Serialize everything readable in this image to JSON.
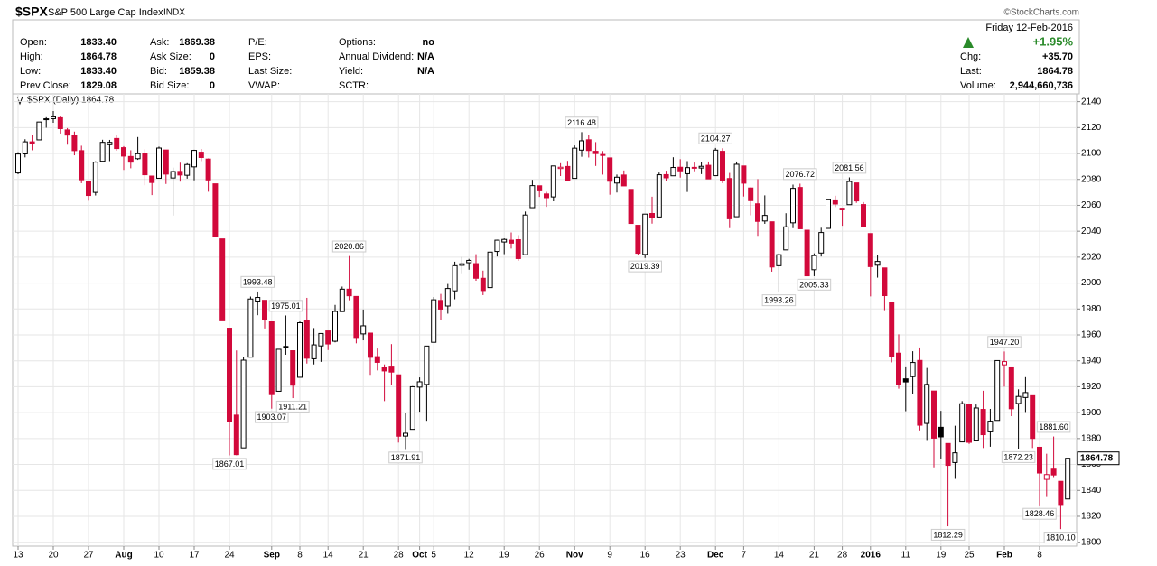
{
  "header": {
    "symbol": "$SPX",
    "name": "S&P 500 Large Cap Index",
    "exchange": "INDX",
    "credit": "©StockCharts.com",
    "date": "Friday  12-Feb-2016",
    "change_pct": "+1.95%",
    "columns": [
      [
        {
          "label": "Open:",
          "value": "1833.40"
        },
        {
          "label": "High:",
          "value": "1864.78"
        },
        {
          "label": "Low:",
          "value": "1833.40"
        },
        {
          "label": "Prev Close:",
          "value": "1829.08"
        }
      ],
      [
        {
          "label": "Ask:",
          "value": "1869.38"
        },
        {
          "label": "Ask Size:",
          "value": "0"
        },
        {
          "label": "Bid:",
          "value": "1859.38"
        },
        {
          "label": "Bid Size:",
          "value": "0"
        }
      ],
      [
        {
          "label": "P/E:"
        },
        {
          "label": "EPS:"
        },
        {
          "label": "Last Size:"
        },
        {
          "label": "VWAP:"
        }
      ],
      [
        {
          "label": "Options:",
          "value": "no"
        },
        {
          "label": "Annual Dividend:",
          "value": "N/A"
        },
        {
          "label": "Yield:",
          "value": "N/A"
        },
        {
          "label": "SCTR:"
        }
      ],
      [
        {
          "label": "Chg:",
          "value": "+35.70"
        },
        {
          "label": "Last:",
          "value": "1864.78"
        },
        {
          "label": "Volume:",
          "value": "2,944,660,736"
        }
      ]
    ]
  },
  "chart_data": {
    "type": "candlestick",
    "legend": "$SPX (Daily) 1864.78",
    "up_color": "#000000",
    "down_color": "#d2093b",
    "categories": [
      "13",
      null,
      null,
      null,
      null,
      "20",
      null,
      null,
      null,
      null,
      "27",
      null,
      null,
      null,
      null,
      "Aug",
      null,
      null,
      null,
      null,
      "10",
      null,
      null,
      null,
      null,
      "17",
      null,
      null,
      null,
      null,
      "24",
      null,
      null,
      null,
      null,
      null,
      "Sep",
      null,
      null,
      null,
      "8",
      null,
      null,
      null,
      "14",
      null,
      null,
      null,
      null,
      "21",
      null,
      null,
      null,
      null,
      "28",
      null,
      null,
      "Oct",
      null,
      "5",
      null,
      null,
      null,
      null,
      "12",
      null,
      null,
      null,
      null,
      "19",
      null,
      null,
      null,
      null,
      "26",
      null,
      null,
      null,
      null,
      "Nov",
      null,
      null,
      null,
      null,
      "9",
      null,
      null,
      null,
      null,
      "16",
      null,
      null,
      null,
      null,
      "23",
      null,
      null,
      null,
      null,
      "Dec",
      null,
      null,
      null,
      "7",
      null,
      null,
      null,
      null,
      "14",
      null,
      null,
      null,
      null,
      "21",
      null,
      null,
      null,
      "28",
      null,
      null,
      null,
      "2016",
      null,
      null,
      null,
      null,
      "11",
      null,
      null,
      null,
      null,
      "19",
      null,
      null,
      null,
      "25",
      null,
      null,
      null,
      null,
      "Feb",
      null,
      null,
      null,
      null,
      "8",
      null,
      null,
      null,
      null
    ],
    "open": [
      2085.0,
      2099.7,
      2109.0,
      2110.5,
      2126.8,
      2126.9,
      2127.6,
      2118.2,
      2114.2,
      2102.2,
      2078.2,
      2070.0,
      2094.0,
      2106.8,
      2111.6,
      2104.5,
      2097.7,
      2096.0,
      2100.0,
      2082.6,
      2080.9,
      2102.7,
      2081.1,
      2086.2,
      2083.2,
      2089.7,
      2101.0,
      2095.7,
      2076.6,
      2034.1,
      1965.2,
      1898.1,
      1872.8,
      1942.8,
      1986.1,
      1986.7,
      1970.1,
      1916.5,
      1950.8,
      1947.8,
      1927.3,
      1971.5,
      1941.6,
      1951.5,
      1963.1,
      1955.1,
      1978.0,
      1995.3,
      1989.7,
      1960.8,
      1961.4,
      1943.2,
      1934.8,
      1935.9,
      1929.2,
      1881.9,
      1887.1,
      1919.7,
      1921.8,
      1954.3,
      1986.6,
      1982.3,
      1994.0,
      2013.7,
      2015.7,
      2015.0,
      2003.7,
      1996.5,
      2024.4,
      2031.7,
      2033.1,
      2033.5,
      2021.9,
      2058.2,
      2075.1,
      2068.8,
      2066.5,
      2088.4,
      2090.0,
      2080.8,
      2102.6,
      2110.6,
      2101.7,
      2098.6,
      2096.6,
      2077.2,
      2083.4,
      2072.3,
      2044.6,
      2022.1,
      2053.7,
      2051.0,
      2083.7,
      2082.8,
      2089.4,
      2084.4,
      2089.3,
      2088.8,
      2090.9,
      2082.9,
      2101.7,
      2080.7,
      2051.2,
      2090.4,
      2073.4,
      2061.2,
      2047.9,
      2047.3,
      2013.4,
      2025.6,
      2046.5,
      2073.8,
      2040.8,
      2010.3,
      2023.2,
      2042.2,
      2063.5,
      2057.8,
      2060.5,
      2077.3,
      2060.6,
      2038.2,
      2013.8,
      2011.7,
      1985.3,
      1945.9,
      1926.1,
      1927.8,
      1940.3,
      1891.7,
      1916.7,
      1888.7,
      1876.2,
      1861.5,
      1877.4,
      1906.3,
      1878.8,
      1902.5,
      1885.2,
      1894.0,
      1936.9,
      1935.3,
      1907.1,
      1911.7,
      1913.1,
      1873.3,
      1848.5,
      1857.1,
      1847.0,
      1833.4
    ],
    "high": [
      2101.0,
      2111.0,
      2114.0,
      2124.4,
      2128.0,
      2132.8,
      2128.9,
      2119.6,
      2116.9,
      2106.0,
      2078.2,
      2094.0,
      2110.6,
      2110.5,
      2114.2,
      2105.7,
      2102.5,
      2112.7,
      2103.3,
      2082.6,
      2105.3,
      2102.7,
      2089.1,
      2092.9,
      2092.5,
      2102.9,
      2103.5,
      2096.2,
      2076.6,
      2034.1,
      1965.2,
      1948.0,
      1943.1,
      1989.6,
      1993.48,
      1986.7,
      1970.1,
      1948.9,
      1975.01,
      1947.8,
      1970.4,
      1988.6,
      1965.3,
      1961.1,
      1963.1,
      1983.2,
      1997.3,
      2020.86,
      1989.7,
      1979.6,
      1961.4,
      1949.5,
      1937.2,
      1952.9,
      1929.2,
      1899.5,
      1920.5,
      1927.2,
      1951.4,
      1989.2,
      1991.6,
      1999.3,
      2016.5,
      2020.1,
      2018.7,
      2022.3,
      2009.6,
      2024.2,
      2033.5,
      2034.5,
      2039.1,
      2037.0,
      2055.2,
      2079.7,
      2075.1,
      2070.4,
      2090.4,
      2092.5,
      2094.3,
      2106.2,
      2116.48,
      2114.6,
      2108.8,
      2101.9,
      2096.6,
      2083.7,
      2086.9,
      2072.3,
      2044.6,
      2053.2,
      2066.7,
      2085.3,
      2086.7,
      2097.1,
      2095.6,
      2094.1,
      2093.0,
      2093.3,
      2093.8,
      2104.27,
      2104.0,
      2085.0,
      2093.8,
      2090.4,
      2073.9,
      2080.3,
      2067.7,
      2047.3,
      2022.9,
      2053.9,
      2076.0,
      2076.72,
      2040.8,
      2022.9,
      2042.7,
      2064.7,
      2067.4,
      2057.8,
      2081.56,
      2077.3,
      2062.5,
      2038.2,
      2021.9,
      2011.7,
      1985.3,
      1960.4,
      1935.7,
      1947.4,
      1950.3,
      1934.5,
      1916.7,
      1901.4,
      1876.2,
      1889.9,
      1908.9,
      1906.3,
      1906.3,
      1916.9,
      1902.9,
      1940.2,
      1947.2,
      1935.3,
      1918.0,
      1927.4,
      1913.1,
      1873.3,
      1868.3,
      1881.6,
      1847.0,
      1864.78
    ],
    "low": [
      2084.0,
      2097.0,
      2102.5,
      2110.5,
      2119.9,
      2123.7,
      2115.4,
      2106.8,
      2098.6,
      2077.1,
      2063.5,
      2067.6,
      2094.0,
      2094.1,
      2102.1,
      2087.3,
      2088.6,
      2095.1,
      2075.5,
      2067.9,
      2080.9,
      2076.5,
      2052.1,
      2078.3,
      2080.6,
      2079.3,
      2094.1,
      2070.5,
      2035.7,
      1970.9,
      1867.01,
      1867.1,
      1872.8,
      1942.8,
      1975.2,
      1965.0,
      1903.07,
      1916.5,
      1944.7,
      1911.21,
      1927.3,
      1937.9,
      1937.2,
      1939.2,
      1948.3,
      1954.3,
      1977.9,
      1986.7,
      1953.5,
      1955.8,
      1929.2,
      1932.6,
      1908.9,
      1921.5,
      1876.9,
      1871.91,
      1887.1,
      1900.7,
      1893.7,
      1954.3,
      1971.2,
      1976.4,
      1987.5,
      2007.6,
      2010.3,
      2001.8,
      1990.7,
      1996.5,
      2020.5,
      2022.3,
      2026.6,
      2017.2,
      2021.9,
      2058.2,
      2066.5,
      2058.8,
      2063.1,
      2082.6,
      2079.3,
      2080.8,
      2097.5,
      2096.9,
      2090.4,
      2083.7,
      2068.2,
      2069.9,
      2074.9,
      2045.7,
      2022.0,
      2019.39,
      2045.9,
      2051.0,
      2078.8,
      2082.8,
      2081.4,
      2070.3,
      2086.3,
      2084.1,
      2080.4,
      2082.9,
      2077.1,
      2042.4,
      2051.2,
      2066.8,
      2052.3,
      2036.5,
      2045.7,
      2008.8,
      1993.26,
      2025.6,
      2042.4,
      2041.7,
      2005.6,
      2005.33,
      2020.5,
      2042.2,
      2058.7,
      2044.2,
      2060.5,
      2061.9,
      2043.6,
      1989.7,
      2004.2,
      1979.1,
      1938.8,
      1918.5,
      1901.1,
      1914.4,
      1886.3,
      1878.9,
      1857.8,
      1864.6,
      1812.29,
      1848.9,
      1877.4,
      1875.8,
      1878.8,
      1872.7,
      1873.7,
      1894.0,
      1920.0,
      1897.3,
      1872.23,
      1900.5,
      1872.7,
      1828.46,
      1834.9,
      1850.3,
      1810.1,
      1833.4
    ],
    "close": [
      2099.6,
      2109.0,
      2107.4,
      2124.3,
      2126.6,
      2128.3,
      2119.2,
      2114.2,
      2102.2,
      2079.7,
      2067.6,
      2093.3,
      2108.6,
      2108.6,
      2103.8,
      2098.0,
      2093.3,
      2099.8,
      2083.6,
      2077.6,
      2104.2,
      2084.1,
      2086.1,
      2083.4,
      2091.5,
      2102.4,
      2096.9,
      2079.6,
      2035.7,
      1970.9,
      1893.2,
      1867.6,
      1940.5,
      1987.7,
      1988.9,
      1972.2,
      1913.9,
      1948.9,
      1951.1,
      1921.2,
      1969.4,
      1942.0,
      1952.3,
      1961.1,
      1953.0,
      1978.1,
      1995.3,
      1990.2,
      1958.0,
      1967.0,
      1942.7,
      1938.8,
      1932.2,
      1931.3,
      1881.8,
      1884.1,
      1920.0,
      1923.8,
      1951.4,
      1987.1,
      1979.9,
      1995.8,
      2013.4,
      2014.9,
      2017.5,
      2003.7,
      1994.2,
      2023.9,
      2033.1,
      2033.7,
      2030.8,
      2018.9,
      2052.5,
      2075.2,
      2071.2,
      2065.9,
      2090.4,
      2089.4,
      2079.4,
      2104.1,
      2109.8,
      2102.3,
      2099.9,
      2099.2,
      2078.6,
      2081.7,
      2075.0,
      2046.0,
      2023.0,
      2053.2,
      2050.4,
      2083.6,
      2081.2,
      2089.2,
      2086.6,
      2089.1,
      2088.9,
      2090.1,
      2080.4,
      2102.6,
      2079.5,
      2049.6,
      2091.7,
      2077.1,
      2063.6,
      2047.6,
      2052.2,
      2012.4,
      2021.9,
      2043.4,
      2073.1,
      2041.9,
      2005.6,
      2021.2,
      2039.0,
      2064.3,
      2061.0,
      2056.5,
      2078.4,
      2063.4,
      2043.9,
      2012.7,
      2016.7,
      1990.3,
      1943.1,
      1922.0,
      1923.7,
      1938.7,
      1890.3,
      1921.8,
      1880.3,
      1881.3,
      1859.3,
      1869.0,
      1906.9,
      1877.1,
      1903.6,
      1883.0,
      1893.4,
      1940.2,
      1939.4,
      1903.0,
      1912.5,
      1915.5,
      1880.1,
      1853.4,
      1852.2,
      1851.9,
      1829.1,
      1864.78
    ],
    "high_labels": [
      null,
      null,
      null,
      null,
      null,
      null,
      null,
      null,
      null,
      null,
      null,
      null,
      null,
      null,
      null,
      null,
      null,
      null,
      null,
      null,
      null,
      null,
      null,
      null,
      null,
      null,
      null,
      null,
      null,
      null,
      null,
      null,
      null,
      null,
      "1993.48",
      null,
      null,
      null,
      "1975.01",
      null,
      null,
      null,
      null,
      null,
      null,
      null,
      null,
      "2020.86",
      null,
      null,
      null,
      null,
      null,
      null,
      null,
      null,
      null,
      null,
      null,
      null,
      null,
      null,
      null,
      null,
      null,
      null,
      null,
      null,
      null,
      null,
      null,
      null,
      null,
      null,
      null,
      null,
      null,
      null,
      null,
      null,
      "2116.48",
      null,
      null,
      null,
      null,
      null,
      null,
      null,
      null,
      null,
      null,
      null,
      null,
      null,
      null,
      null,
      null,
      null,
      null,
      "2104.27",
      null,
      null,
      null,
      null,
      null,
      null,
      null,
      null,
      null,
      null,
      null,
      "2076.72",
      null,
      null,
      null,
      null,
      null,
      null,
      "2081.56",
      null,
      null,
      null,
      null,
      null,
      null,
      null,
      null,
      null,
      null,
      null,
      null,
      null,
      null,
      null,
      null,
      null,
      null,
      null,
      null,
      null,
      "1947.20",
      null,
      null,
      null,
      null,
      null,
      null,
      "1881.60",
      null,
      null
    ],
    "low_labels": [
      null,
      null,
      null,
      null,
      null,
      null,
      null,
      null,
      null,
      null,
      null,
      null,
      null,
      null,
      null,
      null,
      null,
      null,
      null,
      null,
      null,
      null,
      null,
      null,
      null,
      null,
      null,
      null,
      null,
      null,
      "1867.01",
      null,
      null,
      null,
      null,
      null,
      "1903.07",
      null,
      null,
      "1911.21",
      null,
      null,
      null,
      null,
      null,
      null,
      null,
      null,
      null,
      null,
      null,
      null,
      null,
      null,
      null,
      "1871.91",
      null,
      null,
      null,
      null,
      null,
      null,
      null,
      null,
      null,
      null,
      null,
      null,
      null,
      null,
      null,
      null,
      null,
      null,
      null,
      null,
      null,
      null,
      null,
      null,
      null,
      null,
      null,
      null,
      null,
      null,
      null,
      null,
      null,
      "2019.39",
      null,
      null,
      null,
      null,
      null,
      null,
      null,
      null,
      null,
      null,
      null,
      null,
      null,
      null,
      null,
      null,
      null,
      null,
      "1993.26",
      null,
      null,
      null,
      null,
      "2005.33",
      null,
      null,
      null,
      null,
      null,
      null,
      null,
      null,
      null,
      null,
      null,
      null,
      null,
      null,
      null,
      null,
      null,
      null,
      "1812.29",
      null,
      null,
      null,
      null,
      null,
      null,
      null,
      null,
      null,
      "1872.23",
      null,
      null,
      "1828.46",
      null,
      null,
      "1810.10",
      null
    ],
    "ylim": [
      1797,
      2146
    ],
    "yticks": [
      1800,
      1820,
      1840,
      1860,
      1880,
      1900,
      1920,
      1940,
      1960,
      1980,
      2000,
      2020,
      2040,
      2060,
      2080,
      2100,
      2120,
      2140
    ],
    "grid": true
  }
}
